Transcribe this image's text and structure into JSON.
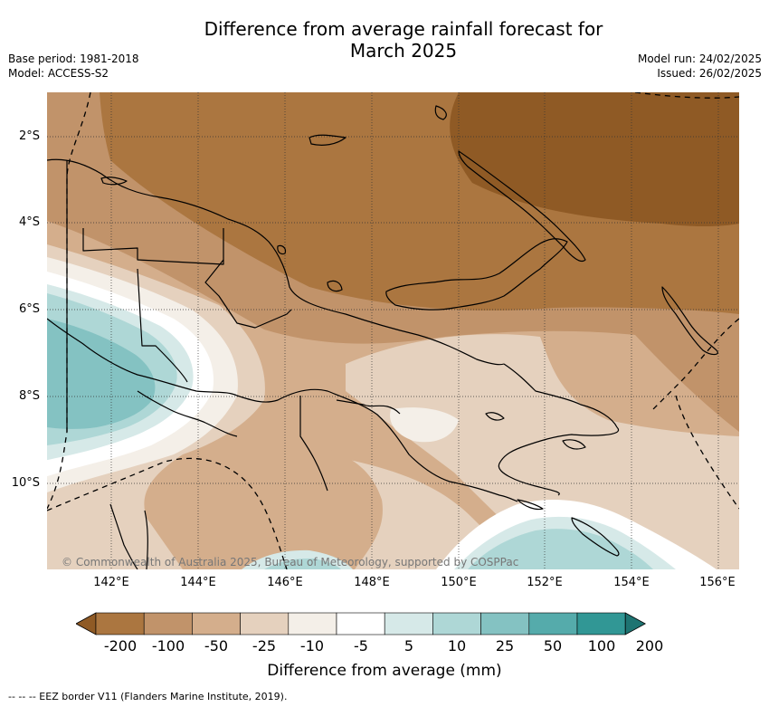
{
  "header": {
    "title_line1": "Difference from average rainfall forecast for",
    "title_line2": "March 2025",
    "base_period": "Base period: 1981-2018",
    "model": "Model: ACCESS-S2",
    "model_run": "Model run: 24/02/2025",
    "issued": "Issued: 26/02/2025"
  },
  "map": {
    "lat_labels": [
      "2°S",
      "4°S",
      "6°S",
      "8°S",
      "10°S"
    ],
    "lon_labels": [
      "142°E",
      "144°E",
      "146°E",
      "148°E",
      "150°E",
      "152°E",
      "154°E",
      "156°E"
    ],
    "copyright": "© Commonwealth of Australia 2025, Bureau of Meteorology, supported by COSPPac",
    "colors": {
      "c_m200": "#8f5a25",
      "c_m100": "#ab7640",
      "c_m50": "#c1936a",
      "c_m25": "#d4ae8c",
      "c_m10": "#e5d1be",
      "c_m5": "#f4efe8",
      "c_5": "#ffffff",
      "c_10": "#d6e9e8",
      "c_25": "#aed7d6",
      "c_50": "#84c2c2"
    }
  },
  "colorbar": {
    "ticks": [
      "-200",
      "-100",
      "-50",
      "-25",
      "-10",
      "-5",
      "5",
      "10",
      "25",
      "50",
      "100",
      "200"
    ],
    "colors": [
      "#8f5a25",
      "#ab7640",
      "#c1936a",
      "#d4ae8c",
      "#e5d1be",
      "#f4efe8",
      "#ffffff",
      "#d6e9e8",
      "#aed7d6",
      "#84c2c2",
      "#55abab",
      "#319795",
      "#1e7472"
    ],
    "label": "Difference from average (mm)"
  },
  "footnote": "--  --  -- EEZ border V11 (Flanders Marine Institute, 2019)."
}
